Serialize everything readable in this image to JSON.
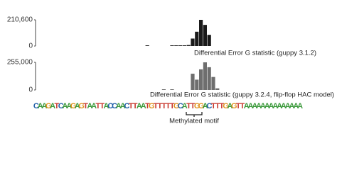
{
  "chart_data": [
    {
      "type": "bar",
      "label": "Differential Error G statistic (guppy 3.1.2)",
      "color": "#1a1a1a",
      "ylim": [
        0,
        210600
      ],
      "yticks": [
        0,
        {
          "value": 210600,
          "label": "210,600"
        }
      ],
      "values": [
        null,
        null,
        null,
        null,
        null,
        null,
        null,
        null,
        null,
        null,
        null,
        null,
        null,
        null,
        null,
        null,
        null,
        null,
        null,
        null,
        null,
        null,
        null,
        null,
        null,
        null,
        null,
        2000,
        null,
        null,
        null,
        null,
        null,
        3000,
        3000,
        3000,
        5000,
        8000,
        60000,
        115000,
        210600,
        170000,
        90000,
        null,
        null,
        null,
        null,
        null,
        null,
        null,
        null,
        null,
        null,
        null,
        null,
        null,
        null,
        null,
        null,
        null,
        null,
        null,
        null,
        null,
        null
      ]
    },
    {
      "type": "bar",
      "label": "Differential Error G statistic (guppy 3.2.4, flip-flop HAC model)",
      "color": "#6e6e6e",
      "ylim": [
        0,
        255000
      ],
      "yticks": [
        0,
        {
          "value": 255000,
          "label": "255,000"
        }
      ],
      "values": [
        null,
        null,
        null,
        null,
        null,
        null,
        null,
        null,
        null,
        null,
        null,
        null,
        null,
        null,
        null,
        null,
        null,
        null,
        null,
        null,
        null,
        null,
        null,
        null,
        null,
        null,
        null,
        null,
        null,
        null,
        null,
        3000,
        null,
        3000,
        null,
        null,
        null,
        null,
        150000,
        95000,
        190000,
        255000,
        210000,
        120000,
        15000,
        null,
        null,
        null,
        null,
        null,
        null,
        null,
        null,
        null,
        null,
        null,
        null,
        null,
        null,
        null,
        null,
        null,
        null,
        null,
        null
      ]
    }
  ],
  "sequence": "CAAGATCAAGAGTAATTACCAACTTAATGTTTTTGCATTGGACTTTGAGTTAAAAAAAAAAAAAA",
  "base_colors": {
    "A": "#3c9a3c",
    "C": "#1f5ea8",
    "G": "#e0921c",
    "T": "#c8372d"
  },
  "annotation": "Methylated motif"
}
